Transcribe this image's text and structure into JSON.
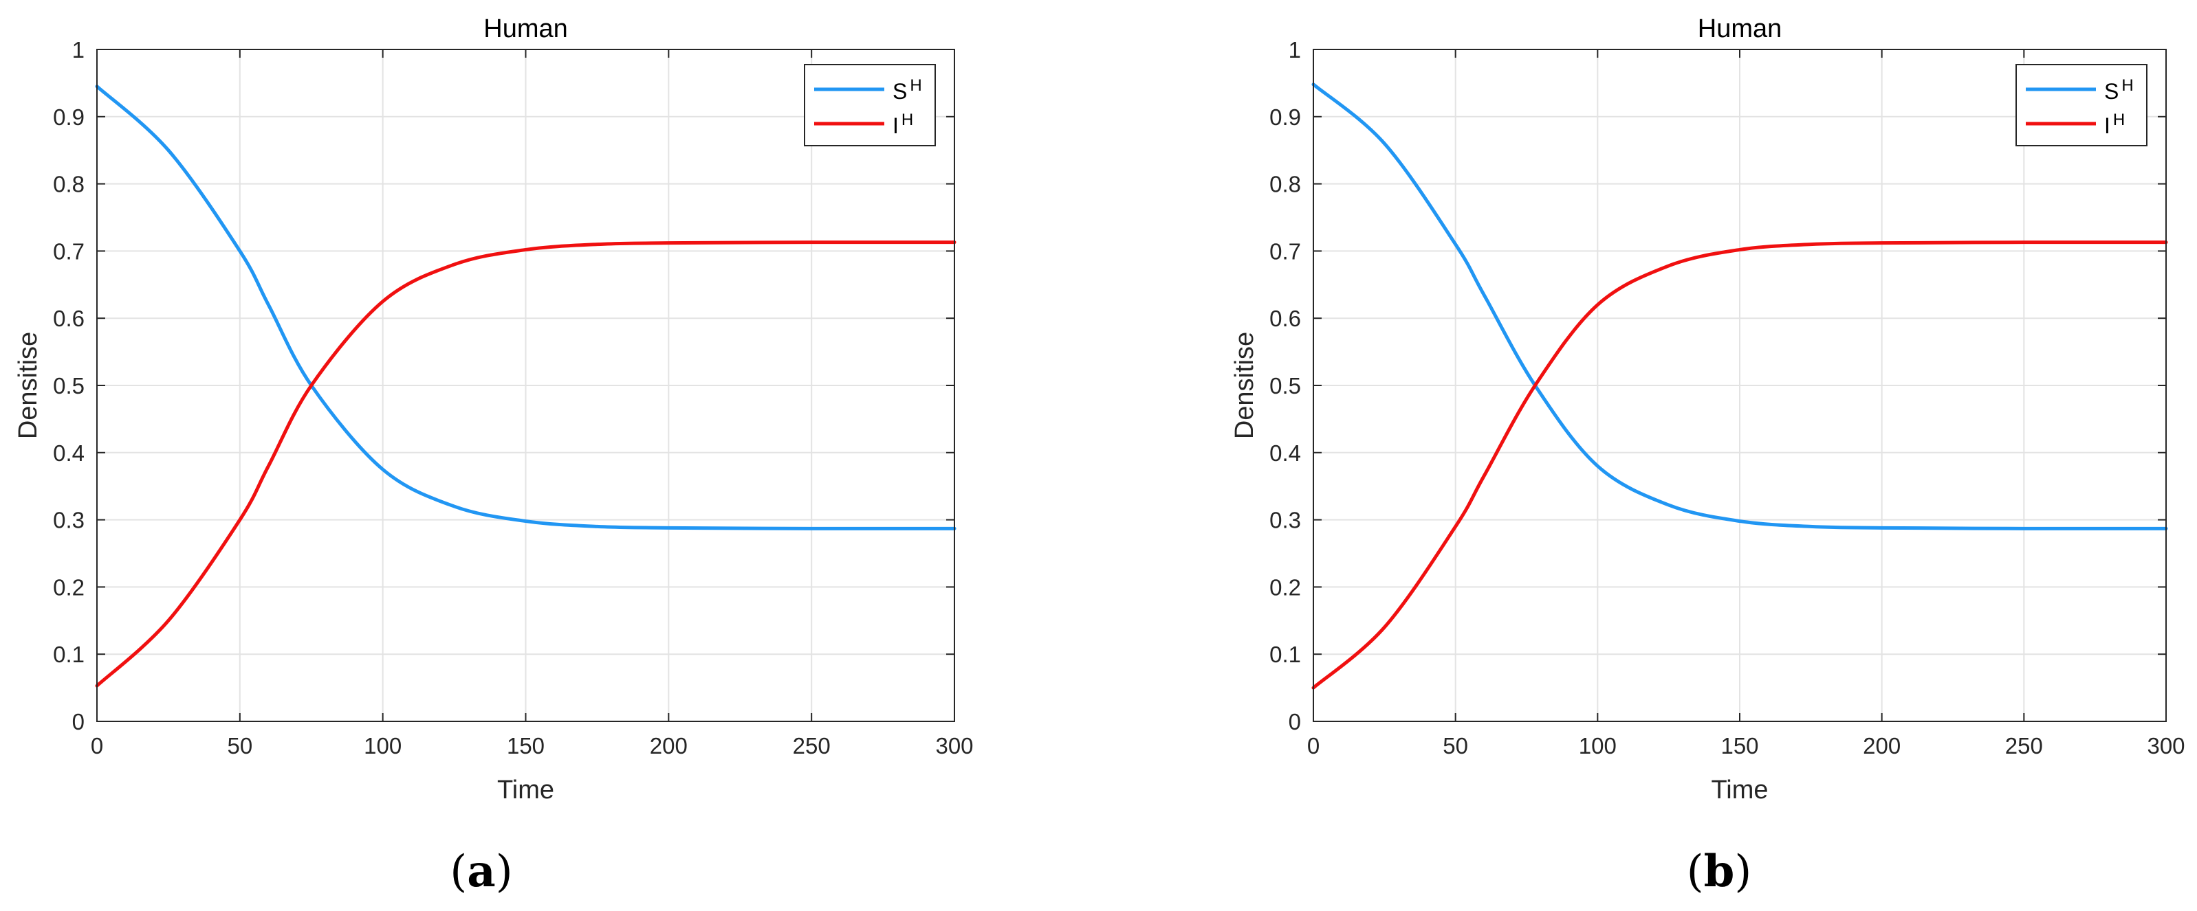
{
  "colors": {
    "S": "#2196f3",
    "I": "#f01010"
  },
  "chart_data": [
    {
      "type": "line",
      "panel_label": "(a)",
      "title": "Human",
      "xlabel": "Time",
      "ylabel": "Densitise",
      "xlim": [
        0,
        300
      ],
      "ylim": [
        0,
        1
      ],
      "xticks": [
        0,
        50,
        100,
        150,
        200,
        250,
        300
      ],
      "yticks": [
        0,
        0.1,
        0.2,
        0.3,
        0.4,
        0.5,
        0.6,
        0.7,
        0.8,
        0.9,
        1
      ],
      "grid": true,
      "legend_position": "top-right",
      "x": [
        0,
        25,
        50,
        60,
        75,
        100,
        125,
        150,
        175,
        200,
        250,
        300
      ],
      "series": [
        {
          "name": "S",
          "sup": "H",
          "color": "#2196f3",
          "values": [
            0.945,
            0.85,
            0.7,
            0.62,
            0.5,
            0.375,
            0.32,
            0.298,
            0.29,
            0.288,
            0.287,
            0.287
          ]
        },
        {
          "name": "I",
          "sup": "H",
          "color": "#f01010",
          "values": [
            0.053,
            0.15,
            0.3,
            0.38,
            0.5,
            0.625,
            0.68,
            0.702,
            0.71,
            0.712,
            0.713,
            0.713
          ]
        }
      ]
    },
    {
      "type": "line",
      "panel_label": "(b)",
      "title": "Human",
      "xlabel": "Time",
      "ylabel": "Densitise",
      "xlim": [
        0,
        300
      ],
      "ylim": [
        0,
        1
      ],
      "xticks": [
        0,
        50,
        100,
        150,
        200,
        250,
        300
      ],
      "yticks": [
        0,
        0.1,
        0.2,
        0.3,
        0.4,
        0.5,
        0.6,
        0.7,
        0.8,
        0.9,
        1
      ],
      "grid": true,
      "legend_position": "top-right",
      "x": [
        0,
        25,
        50,
        60,
        78,
        100,
        125,
        150,
        175,
        200,
        250,
        300
      ],
      "series": [
        {
          "name": "S",
          "sup": "H",
          "color": "#2196f3",
          "values": [
            0.948,
            0.86,
            0.71,
            0.635,
            0.5,
            0.38,
            0.322,
            0.298,
            0.29,
            0.288,
            0.287,
            0.287
          ]
        },
        {
          "name": "I",
          "sup": "H",
          "color": "#f01010",
          "values": [
            0.05,
            0.14,
            0.29,
            0.365,
            0.5,
            0.62,
            0.678,
            0.702,
            0.71,
            0.712,
            0.713,
            0.713
          ]
        }
      ]
    }
  ]
}
